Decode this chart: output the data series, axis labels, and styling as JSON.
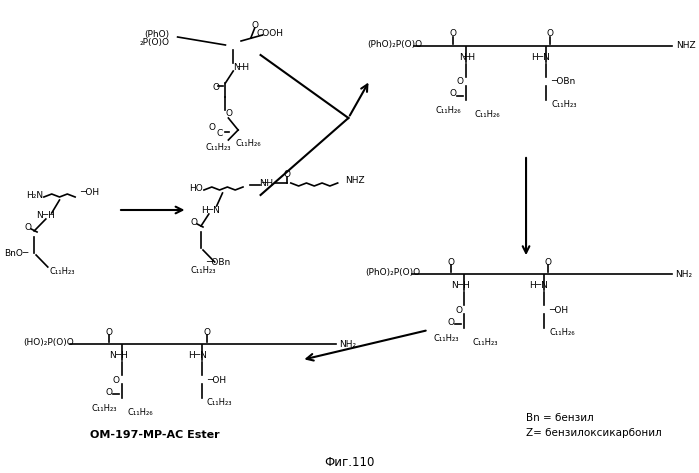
{
  "figsize": [
    6.99,
    4.73
  ],
  "dpi": 100,
  "bg": "#ffffff",
  "title": "Фиг.110",
  "label_om": "OM-197-MP-AC Ester",
  "label_bn": "Bn = бензил",
  "label_z": "Z= бензилоксикарбонил"
}
